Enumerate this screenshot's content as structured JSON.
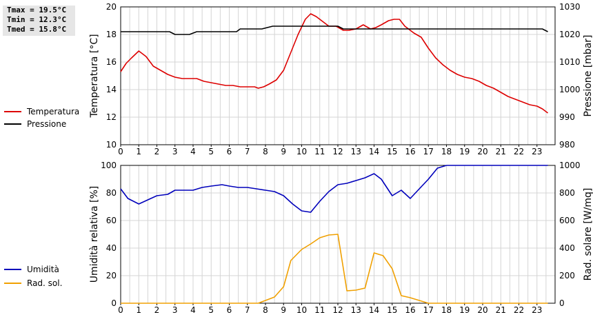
{
  "stats": {
    "tmax": "Tmax = 19.5°C",
    "tmin": "Tmin = 12.3°C",
    "tmed": "Tmed = 15.8°C"
  },
  "chart_data": [
    {
      "type": "line",
      "xlim": [
        0,
        24
      ],
      "xticks": [
        0,
        1,
        2,
        3,
        4,
        5,
        6,
        7,
        8,
        9,
        10,
        11,
        12,
        13,
        14,
        15,
        16,
        17,
        18,
        19,
        20,
        21,
        22,
        23
      ],
      "ylabel": "Temperatura [°C]",
      "ylim": [
        10,
        20
      ],
      "yticks": [
        10,
        12,
        14,
        16,
        18,
        20
      ],
      "y2label": "Pressione [mbar]",
      "y2lim": [
        980,
        1030
      ],
      "y2ticks": [
        980,
        990,
        1000,
        1010,
        1020,
        1030
      ],
      "grid": true,
      "legend_position": "left",
      "series": [
        {
          "name": "Temperatura",
          "axis": "left",
          "color": "#dd0000",
          "x": [
            0,
            0.3,
            0.6,
            1,
            1.4,
            1.8,
            2.2,
            2.6,
            3,
            3.4,
            3.8,
            4.2,
            4.6,
            5,
            5.4,
            5.8,
            6.2,
            6.6,
            7,
            7.4,
            7.6,
            7.9,
            8.2,
            8.6,
            9,
            9.4,
            9.8,
            10.2,
            10.5,
            10.8,
            11.1,
            11.5,
            11.9,
            12.3,
            12.6,
            13,
            13.4,
            13.8,
            14.1,
            14.4,
            14.8,
            15.1,
            15.4,
            15.7,
            16.2,
            16.6,
            17,
            17.4,
            17.8,
            18.2,
            18.6,
            19,
            19.4,
            19.8,
            20.2,
            20.6,
            21,
            21.4,
            21.8,
            22.2,
            22.6,
            23,
            23.3,
            23.6
          ],
          "values": [
            15.3,
            15.9,
            16.3,
            16.8,
            16.4,
            15.7,
            15.4,
            15.1,
            14.9,
            14.8,
            14.8,
            14.8,
            14.6,
            14.5,
            14.4,
            14.3,
            14.3,
            14.2,
            14.2,
            14.2,
            14.1,
            14.2,
            14.4,
            14.7,
            15.4,
            16.7,
            18.0,
            19.1,
            19.5,
            19.3,
            19.0,
            18.6,
            18.6,
            18.3,
            18.3,
            18.4,
            18.7,
            18.4,
            18.5,
            18.7,
            19.0,
            19.1,
            19.1,
            18.6,
            18.1,
            17.8,
            17.0,
            16.3,
            15.8,
            15.4,
            15.1,
            14.9,
            14.8,
            14.6,
            14.3,
            14.1,
            13.8,
            13.5,
            13.3,
            13.1,
            12.9,
            12.8,
            12.6,
            12.3
          ]
        },
        {
          "name": "Pressione",
          "axis": "right",
          "color": "#000000",
          "x": [
            0,
            0.5,
            1,
            1.5,
            2,
            2.5,
            2.7,
            3,
            3.5,
            3.8,
            4.2,
            4.6,
            5,
            5.5,
            6,
            6.4,
            6.6,
            7,
            7.5,
            7.8,
            8.4,
            9,
            9.5,
            10,
            10.5,
            11,
            11.5,
            12,
            12.3,
            12.6,
            13,
            13.5,
            14,
            14.5,
            15,
            15.5,
            16,
            16.5,
            17,
            17.5,
            18,
            18.5,
            19,
            19.5,
            20,
            20.5,
            21,
            21.5,
            22,
            22.5,
            23,
            23.3,
            23.6
          ],
          "values": [
            1021,
            1021,
            1021,
            1021,
            1021,
            1021,
            1021,
            1020,
            1020,
            1020,
            1021,
            1021,
            1021,
            1021,
            1021,
            1021,
            1022,
            1022,
            1022,
            1022,
            1023,
            1023,
            1023,
            1023,
            1023,
            1023,
            1023,
            1023,
            1022,
            1022,
            1022,
            1022,
            1022,
            1022,
            1022,
            1022,
            1022,
            1022,
            1022,
            1022,
            1022,
            1022,
            1022,
            1022,
            1022,
            1022,
            1022,
            1022,
            1022,
            1022,
            1022,
            1022,
            1021
          ]
        }
      ]
    },
    {
      "type": "line",
      "xlim": [
        0,
        24
      ],
      "xticks": [
        0,
        1,
        2,
        3,
        4,
        5,
        6,
        7,
        8,
        9,
        10,
        11,
        12,
        13,
        14,
        15,
        16,
        17,
        18,
        19,
        20,
        21,
        22,
        23
      ],
      "ylabel": "Umidità relativa [%]",
      "ylim": [
        0,
        100
      ],
      "yticks": [
        0,
        20,
        40,
        60,
        80,
        100
      ],
      "y2label": "Rad. solare [W/mq]",
      "y2lim": [
        0,
        1000
      ],
      "y2ticks": [
        0,
        200,
        400,
        600,
        800,
        1000
      ],
      "grid": true,
      "legend_position": "left",
      "series": [
        {
          "name": "Umidità",
          "axis": "left",
          "color": "#0000bb",
          "x": [
            0,
            0.4,
            1,
            1.5,
            2,
            2.6,
            3,
            3.6,
            4,
            4.5,
            5,
            5.6,
            6,
            6.5,
            7,
            7.5,
            8,
            8.5,
            9,
            9.5,
            10,
            10.5,
            11,
            11.5,
            12,
            12.5,
            13,
            13.5,
            14,
            14.4,
            15,
            15.5,
            16,
            16.5,
            17,
            17.5,
            18,
            19,
            20,
            21,
            22,
            23,
            23.6
          ],
          "values": [
            83,
            76,
            72,
            75,
            78,
            79,
            82,
            82,
            82,
            84,
            85,
            86,
            85,
            84,
            84,
            83,
            82,
            81,
            78,
            72,
            67,
            66,
            74,
            81,
            86,
            87,
            89,
            91,
            94,
            90,
            78,
            82,
            76,
            83,
            90,
            98,
            100,
            100,
            100,
            100,
            100,
            100,
            100
          ]
        },
        {
          "name": "Rad. sol.",
          "axis": "right",
          "color": "#f0a000",
          "x": [
            0,
            1,
            2,
            3,
            4,
            5,
            6,
            7,
            7.6,
            8,
            8.5,
            9,
            9.4,
            10,
            10.5,
            11,
            11.5,
            12,
            12.5,
            13,
            13.5,
            14,
            14.5,
            15,
            15.5,
            16,
            16.5,
            17,
            18,
            19,
            20,
            21,
            22,
            23,
            23.6
          ],
          "values": [
            0,
            0,
            0,
            0,
            0,
            0,
            0,
            0,
            0,
            20,
            45,
            120,
            310,
            390,
            430,
            475,
            495,
            500,
            90,
            95,
            110,
            365,
            345,
            250,
            55,
            40,
            20,
            0,
            0,
            0,
            0,
            0,
            0,
            0,
            0
          ]
        }
      ]
    }
  ]
}
